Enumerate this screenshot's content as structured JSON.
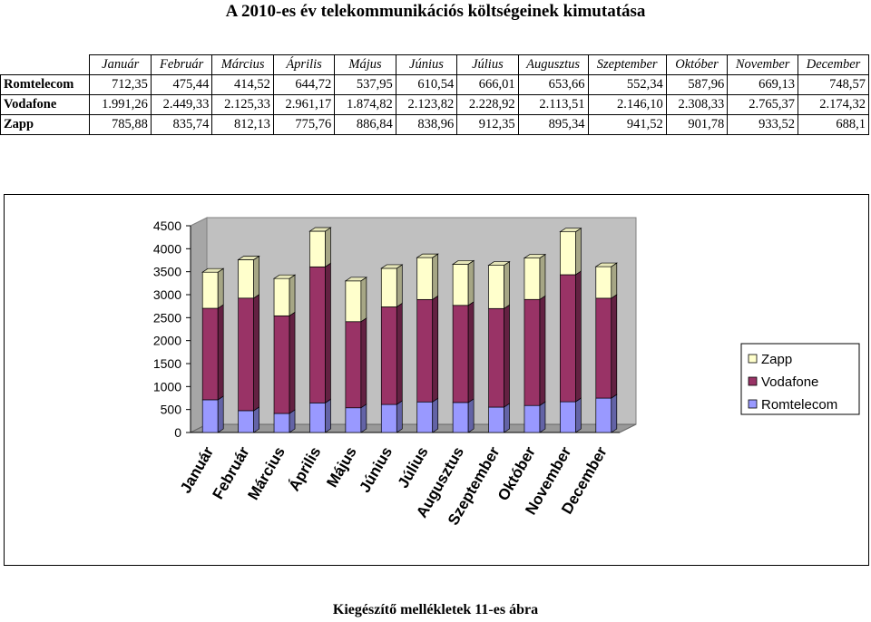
{
  "title": "A 2010-es év telekommunikációs költségeinek kimutatása",
  "caption": "Kiegészítő mellékletek 11-es ábra",
  "table": {
    "months": [
      "Január",
      "Február",
      "Március",
      "Április",
      "Május",
      "Június",
      "Július",
      "Augusztus",
      "Szeptember",
      "Október",
      "November",
      "December"
    ],
    "rows": [
      {
        "name": "Romtelecom",
        "cells": [
          "712,35",
          "475,44",
          "414,52",
          "644,72",
          "537,95",
          "610,54",
          "666,01",
          "653,66",
          "552,34",
          "587,96",
          "669,13",
          "748,57"
        ]
      },
      {
        "name": "Vodafone",
        "cells": [
          "1.991,26",
          "2.449,33",
          "2.125,33",
          "2.961,17",
          "1.874,82",
          "2.123,82",
          "2.228,92",
          "2.113,51",
          "2.146,10",
          "2.308,33",
          "2.765,37",
          "2.174,32"
        ]
      },
      {
        "name": "Zapp",
        "cells": [
          "785,88",
          "835,74",
          "812,13",
          "775,76",
          "886,84",
          "838,96",
          "912,35",
          "895,34",
          "941,52",
          "901,78",
          "933,52",
          "688,1"
        ]
      }
    ]
  },
  "chart_data": {
    "type": "bar",
    "stacked": true,
    "categories": [
      "Január",
      "Február",
      "Március",
      "Április",
      "Május",
      "Június",
      "Július",
      "Augusztus",
      "Szeptember",
      "Október",
      "November",
      "December"
    ],
    "series": [
      {
        "name": "Romtelecom",
        "color": "#9999ff",
        "values": [
          712.35,
          475.44,
          414.52,
          644.72,
          537.95,
          610.54,
          666.01,
          653.66,
          552.34,
          587.96,
          669.13,
          748.57
        ]
      },
      {
        "name": "Vodafone",
        "color": "#993366",
        "values": [
          1991.26,
          2449.33,
          2125.33,
          2961.17,
          1874.82,
          2123.82,
          2228.92,
          2113.51,
          2146.1,
          2308.33,
          2765.37,
          2174.32
        ]
      },
      {
        "name": "Zapp",
        "color": "#ffffcc",
        "values": [
          785.88,
          835.74,
          812.13,
          775.76,
          886.84,
          838.96,
          912.35,
          895.34,
          941.52,
          901.78,
          933.52,
          688.1
        ]
      }
    ],
    "ylim": [
      0,
      4500
    ],
    "yticks": [
      "0",
      "500",
      "1000",
      "1500",
      "2000",
      "2500",
      "3000",
      "3500",
      "4000",
      "4500"
    ],
    "legend": {
      "position": "right",
      "order": [
        "Zapp",
        "Vodafone",
        "Romtelecom"
      ]
    },
    "wall_color": "#c0c0c0",
    "grid": false
  }
}
